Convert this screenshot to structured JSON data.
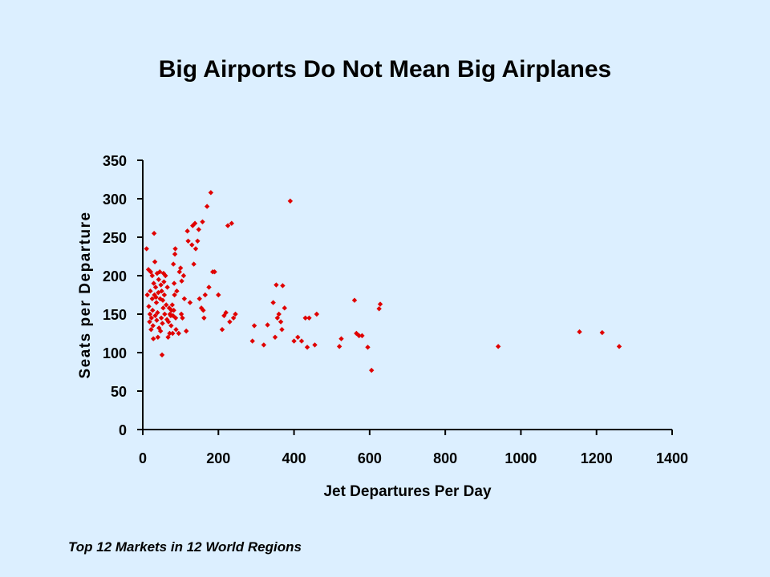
{
  "slide": {
    "title": "Big Airports Do Not Mean Big Airplanes",
    "footnote": "Top 12 Markets in 12 World Regions"
  },
  "chart_data": {
    "type": "scatter",
    "title": "Big Airports Do Not Mean Big Airplanes",
    "xlabel": "Jet Departures Per Day",
    "ylabel": "Seats per Departure",
    "xlim": [
      0,
      1400
    ],
    "ylim": [
      0,
      350
    ],
    "xticks": [
      0,
      200,
      400,
      600,
      800,
      1000,
      1200,
      1400
    ],
    "yticks": [
      0,
      50,
      100,
      150,
      200,
      250,
      300,
      350
    ],
    "grid": false,
    "legend": "none",
    "marker_color": "#e00000",
    "points": [
      [
        10,
        235
      ],
      [
        12,
        175
      ],
      [
        15,
        208
      ],
      [
        16,
        160
      ],
      [
        18,
        140
      ],
      [
        19,
        150
      ],
      [
        20,
        180
      ],
      [
        21,
        205
      ],
      [
        22,
        130
      ],
      [
        23,
        145
      ],
      [
        25,
        200
      ],
      [
        25,
        170
      ],
      [
        26,
        155
      ],
      [
        27,
        135
      ],
      [
        28,
        118
      ],
      [
        29,
        190
      ],
      [
        30,
        255
      ],
      [
        31,
        175
      ],
      [
        32,
        218
      ],
      [
        33,
        148
      ],
      [
        34,
        185
      ],
      [
        35,
        172
      ],
      [
        36,
        165
      ],
      [
        37,
        142
      ],
      [
        38,
        203
      ],
      [
        39,
        152
      ],
      [
        40,
        120
      ],
      [
        41,
        178
      ],
      [
        42,
        195
      ],
      [
        43,
        132
      ],
      [
        45,
        205
      ],
      [
        46,
        170
      ],
      [
        47,
        128
      ],
      [
        48,
        188
      ],
      [
        49,
        145
      ],
      [
        50,
        180
      ],
      [
        51,
        97
      ],
      [
        52,
        138
      ],
      [
        53,
        168
      ],
      [
        54,
        158
      ],
      [
        55,
        203
      ],
      [
        56,
        192
      ],
      [
        57,
        175
      ],
      [
        58,
        150
      ],
      [
        60,
        200
      ],
      [
        62,
        162
      ],
      [
        64,
        143
      ],
      [
        65,
        185
      ],
      [
        67,
        120
      ],
      [
        68,
        140
      ],
      [
        70,
        158
      ],
      [
        71,
        125
      ],
      [
        72,
        150
      ],
      [
        74,
        148
      ],
      [
        75,
        135
      ],
      [
        76,
        155
      ],
      [
        78,
        162
      ],
      [
        79,
        125
      ],
      [
        80,
        148
      ],
      [
        81,
        215
      ],
      [
        82,
        155
      ],
      [
        83,
        190
      ],
      [
        84,
        175
      ],
      [
        85,
        228
      ],
      [
        86,
        235
      ],
      [
        87,
        145
      ],
      [
        88,
        130
      ],
      [
        90,
        180
      ],
      [
        95,
        125
      ],
      [
        97,
        205
      ],
      [
        100,
        210
      ],
      [
        102,
        150
      ],
      [
        103,
        193
      ],
      [
        105,
        145
      ],
      [
        108,
        200
      ],
      [
        110,
        170
      ],
      [
        115,
        128
      ],
      [
        118,
        258
      ],
      [
        120,
        245
      ],
      [
        125,
        165
      ],
      [
        130,
        240
      ],
      [
        132,
        265
      ],
      [
        135,
        215
      ],
      [
        138,
        268
      ],
      [
        140,
        235
      ],
      [
        145,
        245
      ],
      [
        148,
        260
      ],
      [
        150,
        170
      ],
      [
        155,
        158
      ],
      [
        158,
        270
      ],
      [
        160,
        155
      ],
      [
        162,
        145
      ],
      [
        165,
        175
      ],
      [
        170,
        290
      ],
      [
        175,
        185
      ],
      [
        180,
        308
      ],
      [
        185,
        205
      ],
      [
        190,
        205
      ],
      [
        200,
        175
      ],
      [
        210,
        130
      ],
      [
        215,
        148
      ],
      [
        220,
        152
      ],
      [
        225,
        265
      ],
      [
        230,
        140
      ],
      [
        235,
        268
      ],
      [
        240,
        145
      ],
      [
        245,
        150
      ],
      [
        290,
        115
      ],
      [
        295,
        135
      ],
      [
        320,
        110
      ],
      [
        330,
        136
      ],
      [
        345,
        165
      ],
      [
        350,
        120
      ],
      [
        353,
        188
      ],
      [
        356,
        145
      ],
      [
        360,
        150
      ],
      [
        365,
        140
      ],
      [
        368,
        130
      ],
      [
        370,
        187
      ],
      [
        375,
        158
      ],
      [
        390,
        297
      ],
      [
        400,
        115
      ],
      [
        410,
        120
      ],
      [
        420,
        115
      ],
      [
        430,
        145
      ],
      [
        435,
        107
      ],
      [
        440,
        145
      ],
      [
        455,
        110
      ],
      [
        460,
        150
      ],
      [
        520,
        108
      ],
      [
        525,
        118
      ],
      [
        560,
        168
      ],
      [
        565,
        125
      ],
      [
        572,
        122
      ],
      [
        580,
        122
      ],
      [
        595,
        107
      ],
      [
        605,
        77
      ],
      [
        625,
        157
      ],
      [
        628,
        163
      ],
      [
        940,
        108
      ],
      [
        1155,
        127
      ],
      [
        1215,
        126
      ],
      [
        1260,
        108
      ]
    ]
  }
}
